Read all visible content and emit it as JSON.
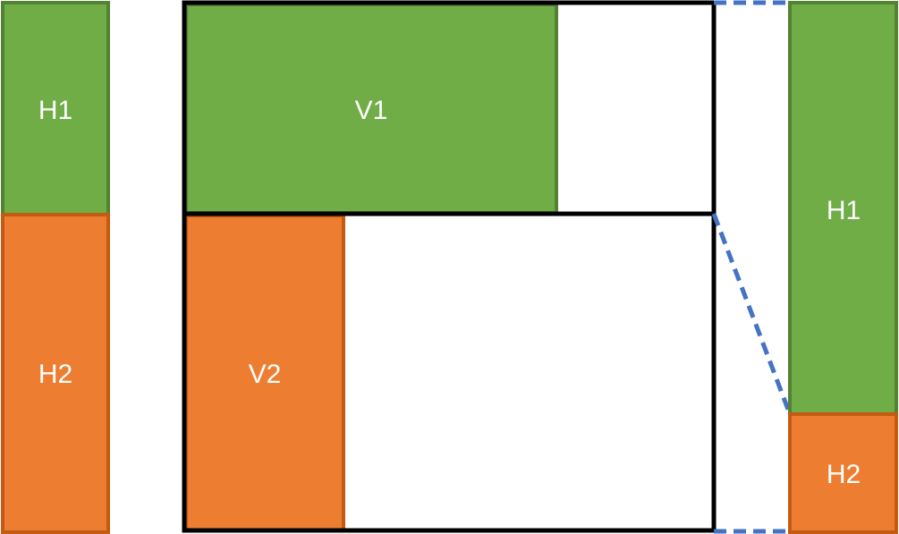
{
  "colors": {
    "green_fill": "#70ad47",
    "green_border": "#548235",
    "orange_fill": "#ed7d31",
    "orange_border": "#c55a11",
    "frame": "#000000",
    "connector": "#4472c4",
    "background": "#ffffff"
  },
  "left_bar": {
    "top_label": "H1",
    "bottom_label": "H2"
  },
  "center_matrix": {
    "top_row_label": "V1",
    "bottom_row_label": "V2"
  },
  "right_bar": {
    "top_label": "H1",
    "bottom_label": "H2"
  },
  "connector_style": "dashed"
}
